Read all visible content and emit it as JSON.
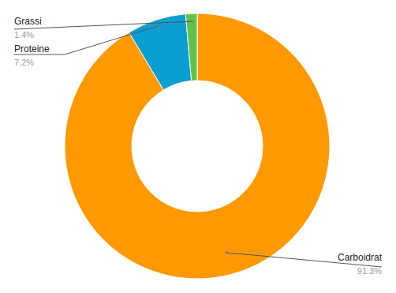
{
  "chart_data": {
    "type": "donut",
    "categories": [
      "Carboidrat",
      "Proteine",
      "Grassi"
    ],
    "values": [
      91.3,
      7.2,
      1.4
    ],
    "value_labels": [
      "91.3%",
      "7.2%",
      "1.4%"
    ],
    "colors": [
      "#ff9900",
      "#0a9fd0",
      "#62c24a"
    ],
    "data_labels": true
  }
}
